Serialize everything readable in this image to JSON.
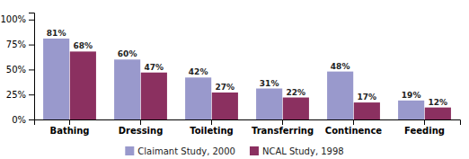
{
  "chart_data": {
    "type": "bar",
    "categories": [
      "Bathing",
      "Dressing",
      "Toileting",
      "Transferring",
      "Continence",
      "Feeding"
    ],
    "series": [
      {
        "name": "Claimant Study, 2000",
        "color": "#9999CC",
        "values": [
          81,
          60,
          42,
          31,
          48,
          19
        ],
        "value_labels": [
          "81%",
          "60%",
          "42%",
          "31%",
          "48%",
          "19%"
        ]
      },
      {
        "name": "NCAL Study, 1998",
        "color": "#8B3060",
        "values": [
          68,
          47,
          27,
          22,
          17,
          12
        ],
        "value_labels": [
          "68%",
          "47%",
          "27%",
          "22%",
          "17%",
          "12%"
        ]
      }
    ],
    "ylim": [
      0,
      107
    ],
    "yticks": [
      {
        "value": 0,
        "label": "0%"
      },
      {
        "value": 25,
        "label": "25%"
      },
      {
        "value": 50,
        "label": "50%"
      },
      {
        "value": 75,
        "label": "75%"
      },
      {
        "value": 100,
        "label": "100%"
      }
    ],
    "grid": false,
    "data_labels": true,
    "legend": "bottom"
  }
}
